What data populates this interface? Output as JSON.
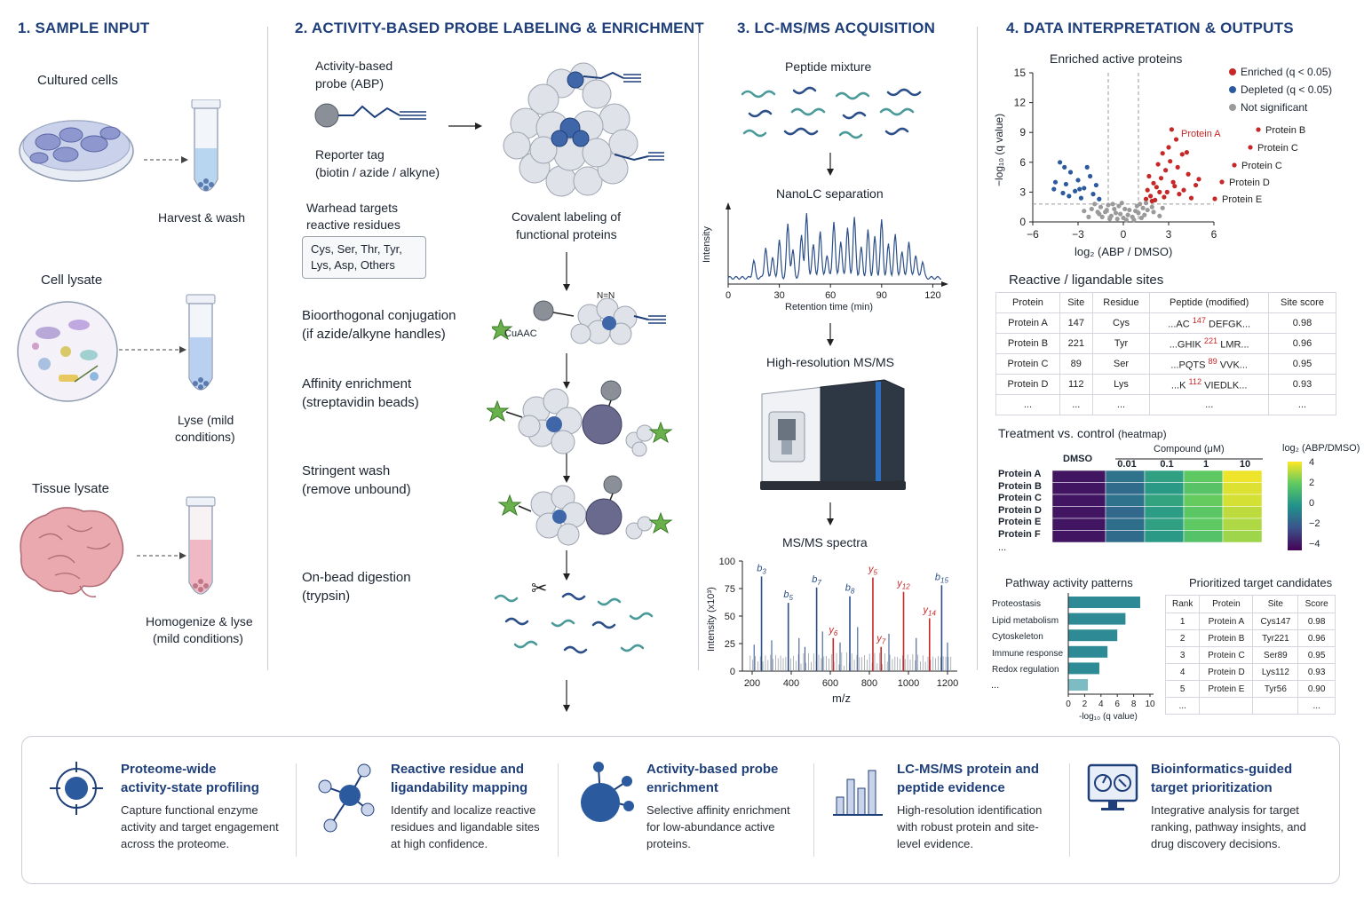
{
  "sections": {
    "s1": "1. SAMPLE INPUT",
    "s2": "2. ACTIVITY-BASED PROBE LABELING & ENRICHMENT",
    "s3": "3. LC-MS/MS ACQUISITION",
    "s4": "4. DATA INTERPRETATION & OUTPUTS"
  },
  "sample": {
    "cultured": "Cultured cells",
    "harvest": "Harvest & wash",
    "lysate": "Cell lysate",
    "lyse_1": "Lyse (mild",
    "lyse_2": "conditions)",
    "tissue": "Tissue lysate",
    "homog_1": "Homogenize & lyse",
    "homog_2": "(mild conditions)"
  },
  "probe": {
    "abp_1": "Activity-based",
    "abp_2": "probe (ABP)",
    "reporter_1": "Reporter tag",
    "reporter_2": "(biotin / azide / alkyne)",
    "warhead_1": "Warhead targets",
    "warhead_2": "reactive residues",
    "residues_1": "Cys, Ser, Thr, Tyr,",
    "residues_2": "Lys, Asp, Others",
    "covalent_1": "Covalent labeling of",
    "covalent_2": "functional proteins",
    "bio_1": "Bioorthogonal conjugation",
    "bio_2": "(if azide/alkyne handles)",
    "cuaac": "CuAAC",
    "aff_1": "Affinity enrichment",
    "aff_2": "(streptavidin beads)",
    "wash_1": "Stringent wash",
    "wash_2": "(remove unbound)",
    "dig_1": "On-bead digestion",
    "dig_2": "(trypsin)"
  },
  "lcms": {
    "peptide_mixture": "Peptide mixture",
    "nanolc": "NanoLC separation",
    "chrom_ylabel": "Intensity",
    "chrom_xlabel": "Retention time (min)",
    "chrom_ticks": [
      "0",
      "30",
      "60",
      "90",
      "120"
    ],
    "hrms": "High-resolution MS/MS",
    "msms": "MS/MS spectra",
    "spec_ylabel": "Intensity (x10³)",
    "spec_xlabel": "m/z",
    "spec_yticks": [
      "100",
      "75",
      "50",
      "25",
      "0"
    ],
    "spec_xticks": [
      "200",
      "400",
      "600",
      "800",
      "1000",
      "1200"
    ],
    "ions": {
      "b3": "b3",
      "b5": "b5",
      "b7": "b7",
      "b8": "b8",
      "y5": "y5",
      "y6": "y6",
      "y7": "y7",
      "y12": "y12",
      "y14": "y14",
      "b15": "b15"
    }
  },
  "volcano": {
    "title": "Enriched active proteins",
    "ylabel": "−log₁₀ (q value)",
    "xlabel": "log₂ (ABP / DMSO)",
    "yticks": [
      "15",
      "12",
      "9",
      "6",
      "3",
      "0"
    ],
    "xticks": [
      "−6",
      "−3",
      "0",
      "3",
      "6"
    ],
    "legend_enriched": "Enriched (q < 0.05)",
    "legend_depleted": "Depleted (q < 0.05)",
    "legend_ns": "Not significant",
    "labels": [
      "Protein A",
      "Protein B",
      "Protein C",
      "Protein C",
      "Protein D",
      "Protein E"
    ]
  },
  "sites": {
    "title": "Reactive / ligandable sites",
    "headers": [
      "Protein",
      "Site",
      "Residue",
      "Peptide (modified)",
      "Site score"
    ],
    "rows": [
      {
        "protein": "Protein A",
        "site": "147",
        "residue": "Cys",
        "pep_pre": "...AC ",
        "pep_num": "147",
        "pep_post": " DEFGK...",
        "score": "0.98"
      },
      {
        "protein": "Protein B",
        "site": "221",
        "residue": "Tyr",
        "pep_pre": "...GHIK ",
        "pep_num": "221",
        "pep_post": " LMR...",
        "score": "0.96"
      },
      {
        "protein": "Protein C",
        "site": "89",
        "residue": "Ser",
        "pep_pre": "...PQTS ",
        "pep_num": "89",
        "pep_post": " VVK...",
        "score": "0.95"
      },
      {
        "protein": "Protein D",
        "site": "112",
        "residue": "Lys",
        "pep_pre": "...K ",
        "pep_num": "112",
        "pep_post": " VIEDLK...",
        "score": "0.93"
      }
    ],
    "ellipsis": "..."
  },
  "heatmap": {
    "title": "Treatment vs. control",
    "title_suffix": "(heatmap)",
    "compound": "Compound (μM)",
    "dmso": "DMSO",
    "cols": [
      "0.01",
      "0.1",
      "1",
      "10"
    ],
    "rows": [
      "Protein A",
      "Protein B",
      "Protein C",
      "Protein D",
      "Protein E",
      "Protein F"
    ],
    "more": "...",
    "scale_label": "log₂ (ABP/DMSO)",
    "scale_ticks": [
      "4",
      "2",
      "0",
      "−2",
      "−4"
    ]
  },
  "pathway": {
    "title": "Pathway activity patterns",
    "categories": [
      "Proteostasis",
      "Lipid metabolism",
      "Cytoskeleton",
      "Immune response",
      "Redox regulation"
    ],
    "more": "...",
    "xticks": [
      "0",
      "2",
      "4",
      "6",
      "8",
      "10"
    ],
    "xlabel": "-log₁₀ (q value)"
  },
  "targets": {
    "title": "Prioritized target candidates",
    "headers": [
      "Rank",
      "Protein",
      "Site",
      "Score"
    ],
    "rows": [
      {
        "rank": "1",
        "protein": "Protein A",
        "site": "Cys147",
        "score": "0.98"
      },
      {
        "rank": "2",
        "protein": "Protein B",
        "site": "Tyr221",
        "score": "0.96"
      },
      {
        "rank": "3",
        "protein": "Protein C",
        "site": "Ser89",
        "score": "0.95"
      },
      {
        "rank": "4",
        "protein": "Protein D",
        "site": "Lys112",
        "score": "0.93"
      },
      {
        "rank": "5",
        "protein": "Protein E",
        "site": "Tyr56",
        "score": "0.90"
      }
    ],
    "ellipsis": "..."
  },
  "features": [
    {
      "title_1": "Proteome-wide",
      "title_2": "activity-state profiling",
      "desc_1": "Capture functional enzyme",
      "desc_2": "activity and target engagement",
      "desc_3": "across the proteome.",
      "icon": "target-icon"
    },
    {
      "title_1": "Reactive residue and",
      "title_2": "ligandability mapping",
      "desc_1": "Identify and localize reactive",
      "desc_2": "residues and ligandable sites",
      "desc_3": "at high confidence.",
      "icon": "network-icon"
    },
    {
      "title_1": "Activity-based probe",
      "title_2": "enrichment",
      "desc_1": "Selective affinity enrichment",
      "desc_2": "for low-abundance active",
      "desc_3": "proteins.",
      "icon": "molecule-icon"
    },
    {
      "title_1": "LC-MS/MS protein and",
      "title_2": "peptide evidence",
      "desc_1": "High-resolution identification",
      "desc_2": "with robust protein and site-",
      "desc_3": "level evidence.",
      "icon": "bar-chart-icon"
    },
    {
      "title_1": "Bioinformatics-guided",
      "title_2": "target prioritization",
      "desc_1": "Integrative analysis for target",
      "desc_2": "ranking, pathway insights, and",
      "desc_3": "drug discovery decisions.",
      "icon": "monitor-icon"
    }
  ],
  "colors": {
    "brand": "#1f3f7a",
    "enriched": "#c62828",
    "depleted": "#2c5a9e",
    "ns": "#9a9a9a",
    "spectrum_b": "#2c4f8a",
    "spectrum_y": "#c62828",
    "pathway_bar": "#2e8a94"
  },
  "chart_data": [
    {
      "type": "scatter",
      "title": "Enriched active proteins",
      "xlabel": "log₂ (ABP / DMSO)",
      "ylabel": "−log₁₀ (q value)",
      "xlim": [
        -6,
        6
      ],
      "ylim": [
        0,
        15
      ],
      "series": [
        {
          "name": "Enriched (q < 0.05)",
          "points": [
            [
              2.8,
              5.2
            ],
            [
              3.1,
              6.1
            ],
            [
              3.5,
              8.3
            ],
            [
              3.9,
              6.8
            ],
            [
              2.2,
              3.5
            ],
            [
              2.5,
              4.4
            ],
            [
              3.3,
              4.0
            ],
            [
              2.9,
              3.0
            ],
            [
              1.8,
              2.6
            ],
            [
              2.0,
              3.9
            ],
            [
              3.6,
              5.5
            ],
            [
              4.3,
              4.8
            ],
            [
              4.8,
              3.7
            ],
            [
              2.6,
              6.9
            ],
            [
              3.0,
              7.5
            ],
            [
              1.6,
              3.2
            ],
            [
              2.3,
              5.8
            ],
            [
              4.0,
              3.2
            ],
            [
              1.5,
              2.3
            ],
            [
              3.7,
              2.8
            ],
            [
              2.7,
              2.5
            ],
            [
              4.5,
              2.4
            ],
            [
              5.0,
              4.3
            ],
            [
              2.1,
              2.2
            ],
            [
              3.2,
              9.3
            ],
            [
              4.2,
              7.0
            ],
            [
              1.7,
              4.6
            ],
            [
              2.4,
              3.0
            ],
            [
              3.4,
              3.6
            ],
            [
              1.9,
              2.1
            ]
          ]
        },
        {
          "name": "Depleted (q < 0.05)",
          "points": [
            [
              -4.2,
              6.0
            ],
            [
              -3.5,
              5.0
            ],
            [
              -3.0,
              4.2
            ],
            [
              -2.6,
              3.4
            ],
            [
              -3.8,
              3.8
            ],
            [
              -2.2,
              4.6
            ],
            [
              -4.5,
              4.0
            ],
            [
              -3.2,
              3.1
            ],
            [
              -2.0,
              2.8
            ],
            [
              -2.8,
              2.4
            ],
            [
              -3.6,
              2.6
            ],
            [
              -1.8,
              3.7
            ],
            [
              -4.0,
              2.9
            ],
            [
              -2.4,
              5.5
            ],
            [
              -1.6,
              2.3
            ],
            [
              -3.9,
              5.5
            ],
            [
              -2.9,
              3.3
            ],
            [
              -4.6,
              3.3
            ]
          ]
        },
        {
          "name": "Not significant",
          "points": [
            [
              -1.2,
              1.0
            ],
            [
              -0.8,
              0.6
            ],
            [
              -0.4,
              0.3
            ],
            [
              0.2,
              0.2
            ],
            [
              0.6,
              0.5
            ],
            [
              1.0,
              0.9
            ],
            [
              1.3,
              1.4
            ],
            [
              -1.5,
              1.5
            ],
            [
              -0.2,
              0.8
            ],
            [
              0.4,
              1.2
            ],
            [
              0.9,
              1.6
            ],
            [
              -0.6,
              1.3
            ],
            [
              -1.0,
              1.7
            ],
            [
              1.4,
              0.7
            ],
            [
              -1.4,
              0.5
            ],
            [
              0.0,
              0.4
            ],
            [
              0.7,
              0.2
            ],
            [
              -0.3,
              1.6
            ],
            [
              1.1,
              1.8
            ],
            [
              -0.9,
              0.3
            ],
            [
              1.6,
              1.2
            ],
            [
              -1.7,
              1.0
            ],
            [
              0.3,
              0.7
            ],
            [
              -0.5,
              0.9
            ],
            [
              1.2,
              0.4
            ],
            [
              -1.1,
              1.2
            ],
            [
              0.8,
              1.1
            ],
            [
              -0.7,
              1.8
            ],
            [
              1.5,
              1.9
            ],
            [
              -1.6,
              0.8
            ],
            [
              2.0,
              1.0
            ],
            [
              -2.1,
              1.3
            ],
            [
              2.4,
              0.6
            ],
            [
              -2.3,
              0.5
            ],
            [
              1.9,
              1.5
            ],
            [
              -1.9,
              1.8
            ],
            [
              2.6,
              1.4
            ],
            [
              -2.6,
              1.1
            ],
            [
              0.1,
              1.3
            ],
            [
              -0.1,
              1.9
            ]
          ]
        }
      ],
      "labels": [
        {
          "text": "Protein A",
          "x": 3.2,
          "y": 9.3
        },
        {
          "text": "Protein B",
          "x": 4.8,
          "y": 8.5
        },
        {
          "text": "Protein C",
          "x": 4.6,
          "y": 7.2
        },
        {
          "text": "Protein C",
          "x": 4.2,
          "y": 5.4
        },
        {
          "text": "Protein D",
          "x": 3.9,
          "y": 3.5
        },
        {
          "text": "Protein E",
          "x": 3.5,
          "y": 1.8
        }
      ]
    },
    {
      "type": "line",
      "title": "NanoLC separation",
      "xlabel": "Retention time (min)",
      "ylabel": "Intensity",
      "xlim": [
        0,
        125
      ],
      "peaks": [
        [
          15,
          0.25
        ],
        [
          22,
          0.45
        ],
        [
          26,
          0.3
        ],
        [
          30,
          0.55
        ],
        [
          35,
          0.8
        ],
        [
          38,
          0.4
        ],
        [
          43,
          0.65
        ],
        [
          46,
          0.95
        ],
        [
          50,
          0.5
        ],
        [
          54,
          0.7
        ],
        [
          58,
          0.35
        ],
        [
          62,
          0.85
        ],
        [
          66,
          0.55
        ],
        [
          70,
          0.75
        ],
        [
          74,
          0.9
        ],
        [
          78,
          0.45
        ],
        [
          82,
          0.7
        ],
        [
          86,
          0.6
        ],
        [
          90,
          0.85
        ],
        [
          94,
          0.5
        ],
        [
          98,
          0.65
        ],
        [
          102,
          0.4
        ],
        [
          106,
          0.55
        ],
        [
          110,
          0.35
        ],
        [
          114,
          0.25
        ]
      ]
    },
    {
      "type": "bar",
      "title": "MS/MS spectra",
      "xlabel": "m/z",
      "ylabel": "Intensity (x10³)",
      "xlim": [
        150,
        1250
      ],
      "ylim": [
        0,
        100
      ],
      "peaks": [
        {
          "mz": 248,
          "i": 86,
          "ion": "b3"
        },
        {
          "mz": 385,
          "i": 62,
          "ion": "b5"
        },
        {
          "mz": 530,
          "i": 76,
          "ion": "b7"
        },
        {
          "mz": 700,
          "i": 68,
          "ion": "b8"
        },
        {
          "mz": 818,
          "i": 85,
          "ion": "y5"
        },
        {
          "mz": 615,
          "i": 30,
          "ion": "y6"
        },
        {
          "mz": 860,
          "i": 22,
          "ion": "y7"
        },
        {
          "mz": 975,
          "i": 72,
          "ion": "y12"
        },
        {
          "mz": 1108,
          "i": 48,
          "ion": "y14"
        },
        {
          "mz": 1170,
          "i": 78,
          "ion": "b15"
        }
      ]
    },
    {
      "type": "heatmap",
      "title": "Treatment vs. control",
      "columns": [
        "DMSO",
        "0.01",
        "0.1",
        "1",
        "10"
      ],
      "rows": [
        "Protein A",
        "Protein B",
        "Protein C",
        "Protein D",
        "Protein E",
        "Protein F"
      ],
      "values": [
        [
          -3.5,
          -1.0,
          0.5,
          2.0,
          3.8
        ],
        [
          -3.5,
          -1.2,
          0.3,
          1.8,
          3.6
        ],
        [
          -3.5,
          -1.0,
          0.6,
          2.1,
          3.5
        ],
        [
          -3.5,
          -1.3,
          0.4,
          1.9,
          3.2
        ],
        [
          -3.5,
          -1.1,
          0.5,
          2.0,
          3.0
        ],
        [
          -3.5,
          -1.2,
          0.3,
          1.7,
          2.8
        ]
      ],
      "scale_range": [
        -4,
        4
      ]
    },
    {
      "type": "bar",
      "title": "Pathway activity patterns",
      "xlabel": "-log₁₀ (q value)",
      "categories": [
        "Proteostasis",
        "Lipid metabolism",
        "Cytoskeleton",
        "Immune response",
        "Redox regulation"
      ],
      "values": [
        8.8,
        7.0,
        6.0,
        4.8,
        3.8
      ],
      "xlim": [
        0,
        10
      ]
    }
  ]
}
